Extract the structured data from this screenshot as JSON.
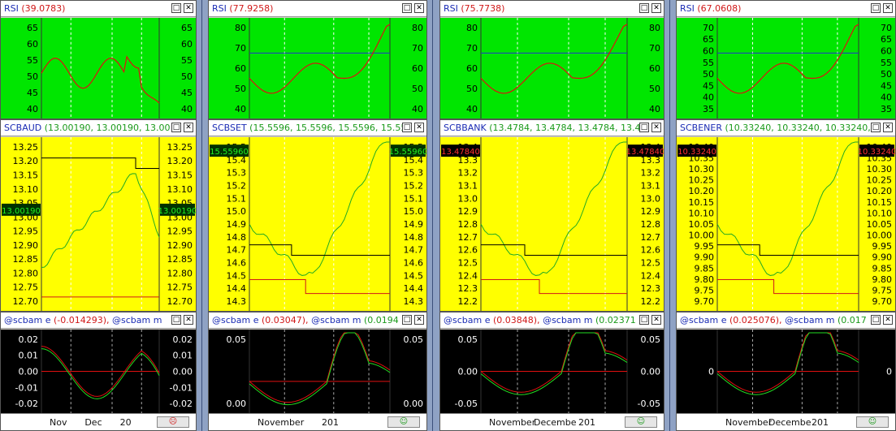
{
  "panels": [
    {
      "rsi_title": "RSI",
      "rsi_value": "(39.0783)",
      "rsi_ticks": [
        "65",
        "60",
        "55",
        "50",
        "45",
        "40"
      ],
      "price_title": "SCBAUD",
      "price_value": "(13.00190, 13.00190, 13.00",
      "price_ticks": [
        "13.25",
        "13.20",
        "13.15",
        "13.10",
        "13.05",
        "13.00",
        "12.95",
        "12.90",
        "12.85",
        "12.80",
        "12.75",
        "12.70"
      ],
      "price_tag": "13.00190",
      "ind_title": "@scbam e",
      "ind_value": "(-0.014293),",
      "ind_title2": "@scbam m",
      "ind_ticks": [
        "0.02",
        "0.01",
        "0.00",
        "-0.01",
        "-0.02"
      ],
      "date_labels": [
        "Nov",
        "Dec",
        "20"
      ],
      "status_icon": "sad-face-icon",
      "status_glyph": "☹"
    },
    {
      "rsi_title": "RSI",
      "rsi_value": "(77.9258)",
      "rsi_ticks": [
        "80",
        "70",
        "60",
        "50",
        "40"
      ],
      "price_title": "SCBSET",
      "price_value": "(15.5596, 15.5596, 15.5596, 15.55",
      "price_ticks": [
        "15.5",
        "15.4",
        "15.3",
        "15.2",
        "15.1",
        "15.0",
        "14.9",
        "14.8",
        "14.7",
        "14.6",
        "14.5",
        "14.4",
        "14.3"
      ],
      "price_tag": "15.55960",
      "ind_title": "@scbam e",
      "ind_value": "(0.03047),",
      "ind_title2": "@scbam m",
      "ind_value2": "(0.0194",
      "ind_ticks": [
        "0.05",
        "0.00"
      ],
      "date_labels": [
        "November",
        "201"
      ],
      "status_icon": "smile-face-icon",
      "status_glyph": "☺"
    },
    {
      "rsi_title": "RSI",
      "rsi_value": "(75.7738)",
      "rsi_ticks": [
        "80",
        "70",
        "60",
        "50",
        "40"
      ],
      "price_title": "SCBBANK",
      "price_value": "(13.4784, 13.4784, 13.4784, 13.4",
      "price_ticks": [
        "13.4",
        "13.3",
        "13.2",
        "13.1",
        "13.0",
        "12.9",
        "12.8",
        "12.7",
        "12.6",
        "12.5",
        "12.4",
        "12.3",
        "12.2"
      ],
      "price_tag": "13.47840",
      "ind_title": "@scbam e",
      "ind_value": "(0.03848),",
      "ind_title2": "@scbam m",
      "ind_value2": "(0.02371",
      "ind_ticks": [
        "0.05",
        "0.00",
        "-0.05"
      ],
      "date_labels": [
        "November",
        "Decembe",
        "201"
      ],
      "status_icon": "smile-face-icon",
      "status_glyph": "☺"
    },
    {
      "rsi_title": "RSI",
      "rsi_value": "(67.0608)",
      "rsi_ticks": [
        "70",
        "65",
        "60",
        "55",
        "50",
        "45",
        "40",
        "35"
      ],
      "price_title": "SCBENER",
      "price_value": "(10.33240, 10.33240, 10.33240, 1",
      "price_ticks": [
        "10.40",
        "10.35",
        "10.30",
        "10.25",
        "10.20",
        "10.15",
        "10.10",
        "10.05",
        "10.00",
        "9.95",
        "9.90",
        "9.85",
        "9.80",
        "9.75",
        "9.70"
      ],
      "price_tag": "10.33240",
      "ind_title": "@scbam e",
      "ind_value": "(0.025076),",
      "ind_title2": "@scbam m",
      "ind_value2": "(0.017",
      "ind_ticks": [
        "0"
      ],
      "date_labels": [
        "November",
        "Decembe",
        "201"
      ],
      "status_icon": "smile-face-icon",
      "status_glyph": "☺"
    }
  ],
  "colors": {
    "rsi_bg": "#00e600",
    "price_bg": "#ffff00",
    "ind_bg": "#000000",
    "price_line": "#22aa22",
    "rsi_line": "#e01010"
  },
  "window_controls": {
    "restore": "□",
    "close": "✕"
  }
}
